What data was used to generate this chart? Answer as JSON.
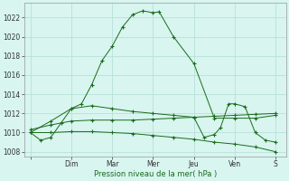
{
  "background_color": "#d8f5f0",
  "grid_color": "#b8e0da",
  "line_color": "#1a6b1a",
  "xlabel": "Pression niveau de la mer( hPa )",
  "ylim": [
    1007.5,
    1023.5
  ],
  "yticks": [
    1008,
    1010,
    1012,
    1014,
    1016,
    1018,
    1020,
    1022
  ],
  "xtick_labels": [
    "",
    "Dim",
    "Mar",
    "Mer",
    "Jeu",
    "Ven",
    "S"
  ],
  "xtick_positions": [
    0,
    2,
    4,
    6,
    8,
    10,
    12
  ],
  "s1x": [
    0,
    0.5,
    1,
    1.5,
    2,
    2.5,
    3,
    3.5,
    4,
    4.5,
    5,
    5.5,
    6,
    6.3,
    7,
    8,
    9,
    10,
    11,
    12
  ],
  "s1y": [
    1010.0,
    1009.2,
    1009.5,
    1011.0,
    1012.5,
    1013.0,
    1015.0,
    1017.5,
    1019.0,
    1021.0,
    1022.3,
    1022.7,
    1022.5,
    1022.6,
    1020.0,
    1017.2,
    1011.5,
    1011.5,
    1011.5,
    1011.8
  ],
  "s2x": [
    0,
    1,
    2,
    3,
    4,
    5,
    6,
    7,
    8,
    9,
    10,
    11,
    12
  ],
  "s2y": [
    1010.3,
    1010.8,
    1011.2,
    1011.3,
    1011.3,
    1011.3,
    1011.4,
    1011.5,
    1011.6,
    1011.7,
    1011.8,
    1011.9,
    1012.0
  ],
  "s3x": [
    0,
    1,
    2,
    3,
    4,
    5,
    6,
    7,
    8,
    9,
    10,
    11,
    12
  ],
  "s3y": [
    1010.0,
    1010.0,
    1010.1,
    1010.1,
    1010.0,
    1009.9,
    1009.7,
    1009.5,
    1009.3,
    1009.0,
    1008.8,
    1008.5,
    1008.0
  ],
  "s4x": [
    0,
    1,
    2,
    3,
    4,
    5,
    6,
    7,
    8,
    8.5,
    9,
    9.3,
    9.7,
    10,
    10.5,
    11,
    11.5,
    12
  ],
  "s4y": [
    1010.0,
    1011.2,
    1012.5,
    1012.8,
    1012.5,
    1012.2,
    1012.0,
    1011.8,
    1011.6,
    1009.5,
    1009.8,
    1010.5,
    1013.0,
    1013.0,
    1012.7,
    1010.0,
    1009.2,
    1009.0
  ]
}
